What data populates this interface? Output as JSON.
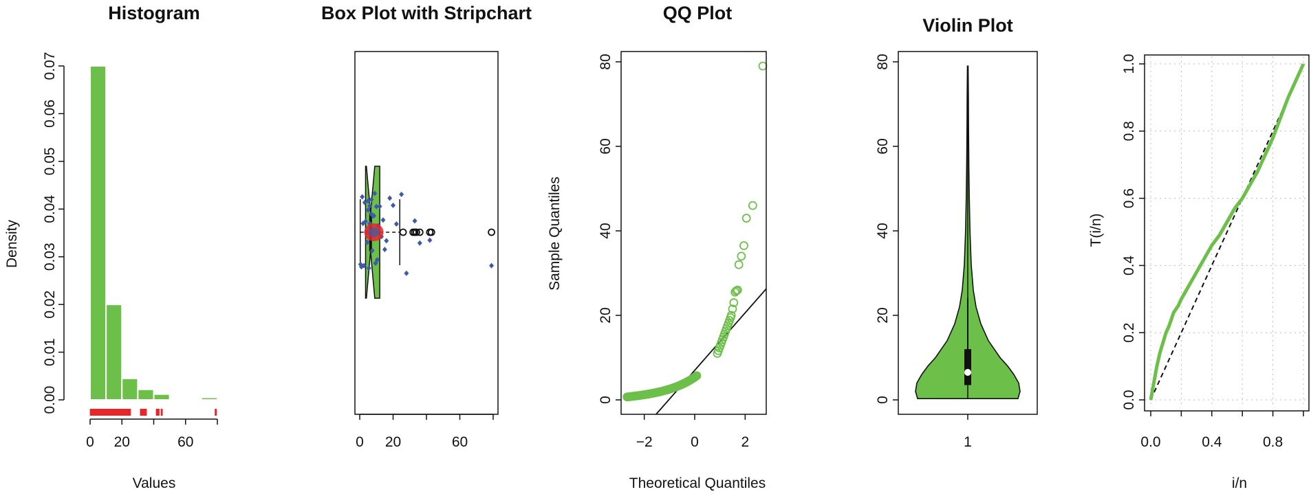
{
  "colors": {
    "green": "#6cc04a",
    "red": "#e8262a",
    "blue": "#3b5ba8",
    "black": "#111111"
  },
  "chart_data": [
    {
      "type": "bar",
      "title": "Histogram",
      "xlabel": "Values",
      "ylabel": "Density",
      "xlim": [
        0,
        80
      ],
      "ylim": [
        0,
        0.07
      ],
      "bin_edges": [
        0,
        10,
        20,
        30,
        40,
        50,
        60,
        70,
        80
      ],
      "values": [
        0.07,
        0.02,
        0.0045,
        0.0022,
        0.0012,
        0.0,
        0.0,
        0.0005
      ],
      "x_ticks": [
        "0",
        "20",
        "60"
      ],
      "y_ticks": [
        "0.00",
        "0.01",
        "0.02",
        "0.03",
        "0.04",
        "0.05",
        "0.06",
        "0.07"
      ],
      "rug": [
        0.5,
        1,
        1.5,
        2,
        2.5,
        3,
        3.5,
        4,
        4.5,
        5,
        5.5,
        6,
        6.5,
        7,
        7.5,
        8,
        8.5,
        9,
        9.5,
        10,
        11,
        12,
        13,
        14,
        15,
        16,
        17,
        18,
        19,
        20,
        21,
        22,
        23,
        24,
        25,
        32,
        33,
        34,
        35,
        42,
        43,
        45,
        79
      ]
    },
    {
      "type": "box",
      "title": "Box Plot with Stripchart",
      "x_ticks": [
        "0",
        "20",
        "60"
      ],
      "xlim": [
        0,
        80
      ],
      "whisker_low": 0.3,
      "q1": 3.5,
      "median": 6.5,
      "q3": 12,
      "whisker_high": 24,
      "notch": [
        4,
        9
      ],
      "mean": 8.5,
      "outliers": [
        26,
        32,
        33,
        34,
        36,
        42,
        43,
        79
      ]
    },
    {
      "type": "scatter",
      "title": "QQ Plot",
      "xlabel": "Theoretical Quantiles",
      "ylabel": "Sample Quantiles",
      "xlim": [
        -2.7,
        2.7
      ],
      "ylim": [
        0,
        80
      ],
      "x_ticks": [
        "−2",
        "0",
        "2"
      ],
      "y_ticks": [
        "0",
        "20",
        "40",
        "60",
        "80"
      ],
      "reference_line": {
        "intercept": 7.0,
        "slope": 6.8
      },
      "upper_points": [
        {
          "x": 1.45,
          "y": 20
        },
        {
          "x": 1.5,
          "y": 21.5
        },
        {
          "x": 1.55,
          "y": 23
        },
        {
          "x": 1.6,
          "y": 25.5
        },
        {
          "x": 1.65,
          "y": 25.8
        },
        {
          "x": 1.7,
          "y": 26
        },
        {
          "x": 1.75,
          "y": 32
        },
        {
          "x": 1.85,
          "y": 34
        },
        {
          "x": 1.95,
          "y": 36.5
        },
        {
          "x": 2.05,
          "y": 43
        },
        {
          "x": 2.3,
          "y": 46
        },
        {
          "x": 2.7,
          "y": 79
        }
      ]
    },
    {
      "type": "violin",
      "title": "Violin Plot",
      "x_ticks": [
        "1"
      ],
      "ylim": [
        0,
        80
      ],
      "y_ticks": [
        "0",
        "20",
        "40",
        "60",
        "80"
      ],
      "range": [
        0.3,
        79
      ],
      "q1": 3.5,
      "median": 6.5,
      "q3": 12,
      "whisker_high": 24
    },
    {
      "type": "line",
      "title": "",
      "xlabel": "i/n",
      "ylabel": "T(i/n)",
      "xlim": [
        0,
        1
      ],
      "ylim": [
        0,
        1
      ],
      "x_ticks": [
        "0.0",
        "0.4",
        "0.8"
      ],
      "y_ticks": [
        "0.0",
        "0.2",
        "0.4",
        "0.6",
        "0.8",
        "1.0"
      ],
      "x": [
        0,
        0.02,
        0.04,
        0.06,
        0.08,
        0.1,
        0.12,
        0.15,
        0.18,
        0.2,
        0.25,
        0.3,
        0.35,
        0.4,
        0.45,
        0.5,
        0.55,
        0.6,
        0.65,
        0.7,
        0.75,
        0.8,
        0.85,
        0.9,
        0.95,
        1.0
      ],
      "y": [
        0,
        0.05,
        0.1,
        0.14,
        0.17,
        0.2,
        0.22,
        0.26,
        0.28,
        0.3,
        0.34,
        0.38,
        0.42,
        0.46,
        0.49,
        0.53,
        0.57,
        0.6,
        0.64,
        0.68,
        0.73,
        0.78,
        0.84,
        0.9,
        0.95,
        1.0
      ],
      "reference": "dashed y=x"
    }
  ]
}
